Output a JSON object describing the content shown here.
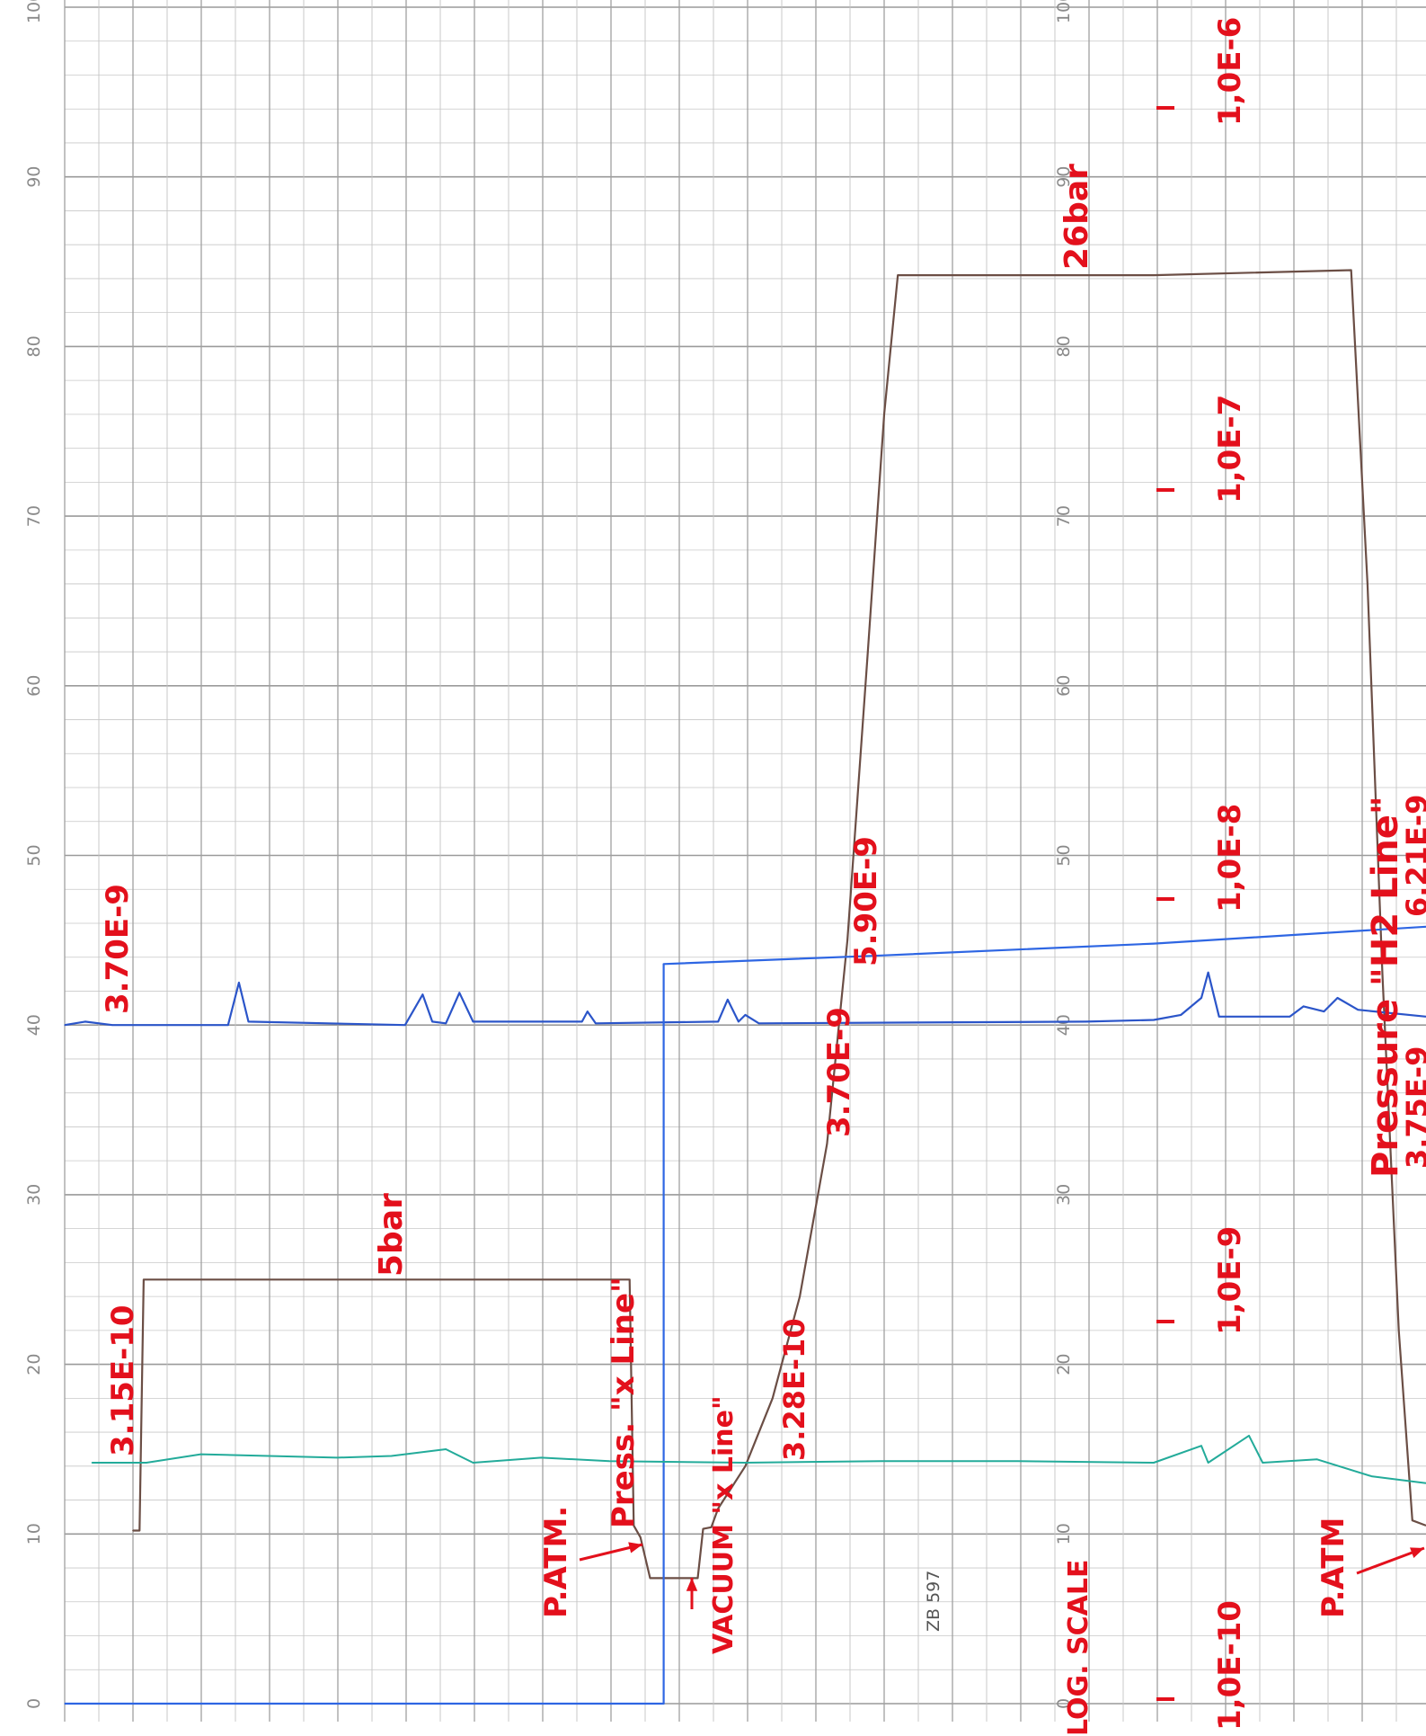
{
  "chart_data": {
    "type": "line",
    "title": "",
    "xlabel": "",
    "ylabel": "",
    "ylim": [
      0,
      100
    ],
    "grid": true,
    "y_ticks": [
      "0",
      "10",
      "20",
      "30",
      "40",
      "50",
      "60",
      "70",
      "80",
      "90",
      "100"
    ],
    "chart_id": "ZB 597",
    "note": "strip-chart recorder paper, time runs left to right, scale 0–100 printed twice",
    "series": [
      {
        "name": "",
        "color": "#6b4e45",
        "points": [
          [
            0.05,
            10.2
          ],
          [
            0.055,
            10.2
          ],
          [
            0.058,
            25
          ],
          [
            0.2,
            25
          ],
          [
            0.415,
            25
          ],
          [
            0.418,
            10.5
          ],
          [
            0.423,
            9.8
          ],
          [
            0.43,
            7.4
          ],
          [
            0.465,
            7.4
          ],
          [
            0.469,
            10.3
          ],
          [
            0.475,
            10.4
          ],
          [
            0.48,
            11.5
          ],
          [
            0.5,
            14
          ],
          [
            0.52,
            18
          ],
          [
            0.54,
            24
          ],
          [
            0.56,
            33
          ],
          [
            0.575,
            45
          ],
          [
            0.59,
            62
          ],
          [
            0.602,
            76
          ],
          [
            0.612,
            84.2
          ],
          [
            0.7,
            84.2
          ],
          [
            0.8,
            84.2
          ],
          [
            0.945,
            84.5
          ],
          [
            0.957,
            66
          ],
          [
            0.968,
            43
          ],
          [
            0.98,
            22
          ],
          [
            0.99,
            10.8
          ],
          [
            1.0,
            10.5
          ]
        ]
      },
      {
        "name": "",
        "color": "#2b55c9",
        "points": [
          [
            0.0,
            40
          ],
          [
            0.015,
            40.2
          ],
          [
            0.035,
            40
          ],
          [
            0.12,
            40
          ],
          [
            0.128,
            42.5
          ],
          [
            0.135,
            40.2
          ],
          [
            0.25,
            40
          ],
          [
            0.263,
            41.8
          ],
          [
            0.27,
            40.2
          ],
          [
            0.28,
            40.1
          ],
          [
            0.29,
            41.9
          ],
          [
            0.3,
            40.2
          ],
          [
            0.38,
            40.2
          ],
          [
            0.384,
            40.8
          ],
          [
            0.39,
            40.1
          ],
          [
            0.48,
            40.2
          ],
          [
            0.487,
            41.5
          ],
          [
            0.495,
            40.2
          ],
          [
            0.5,
            40.6
          ],
          [
            0.51,
            40.1
          ],
          [
            0.75,
            40.2
          ],
          [
            0.8,
            40.3
          ],
          [
            0.82,
            40.6
          ],
          [
            0.835,
            41.6
          ],
          [
            0.84,
            43.1
          ],
          [
            0.848,
            40.5
          ],
          [
            0.9,
            40.5
          ],
          [
            0.91,
            41.1
          ],
          [
            0.925,
            40.8
          ],
          [
            0.935,
            41.6
          ],
          [
            0.95,
            40.9
          ],
          [
            1.0,
            40.5
          ]
        ]
      },
      {
        "name": "",
        "color": "#2e66e3",
        "points": [
          [
            0.0,
            0
          ],
          [
            0.44,
            0
          ],
          [
            0.44,
            43.6
          ],
          [
            0.6,
            44.1
          ],
          [
            0.8,
            44.8
          ],
          [
            1.0,
            45.8
          ]
        ]
      },
      {
        "name": "",
        "color": "#23ab9a",
        "points": [
          [
            0.02,
            14.2
          ],
          [
            0.06,
            14.2
          ],
          [
            0.1,
            14.7
          ],
          [
            0.15,
            14.6
          ],
          [
            0.2,
            14.5
          ],
          [
            0.24,
            14.6
          ],
          [
            0.28,
            15
          ],
          [
            0.3,
            14.2
          ],
          [
            0.35,
            14.5
          ],
          [
            0.4,
            14.3
          ],
          [
            0.5,
            14.2
          ],
          [
            0.6,
            14.3
          ],
          [
            0.7,
            14.3
          ],
          [
            0.8,
            14.2
          ],
          [
            0.835,
            15.2
          ],
          [
            0.84,
            14.2
          ],
          [
            0.87,
            15.8
          ],
          [
            0.88,
            14.2
          ],
          [
            0.92,
            14.4
          ],
          [
            0.96,
            13.4
          ],
          [
            1.0,
            13
          ]
        ]
      }
    ],
    "annotations": [
      "3.70E-9",
      "3.15E-10",
      "5bar",
      "P.ATM.",
      "Press. \"x Line\"",
      "VACUUM \"x Line\"",
      "3.28E-10",
      "3.70E-9",
      "5.90E-9",
      "26bar",
      "LOG. SCALE",
      "1,0E-10",
      "1,0E-9",
      "1,0E-8",
      "1,0E-7",
      "1,0E-6",
      "Pressure \"H2 Line\"",
      "6.21E-9",
      "3.75E-9",
      "P.ATM"
    ]
  }
}
